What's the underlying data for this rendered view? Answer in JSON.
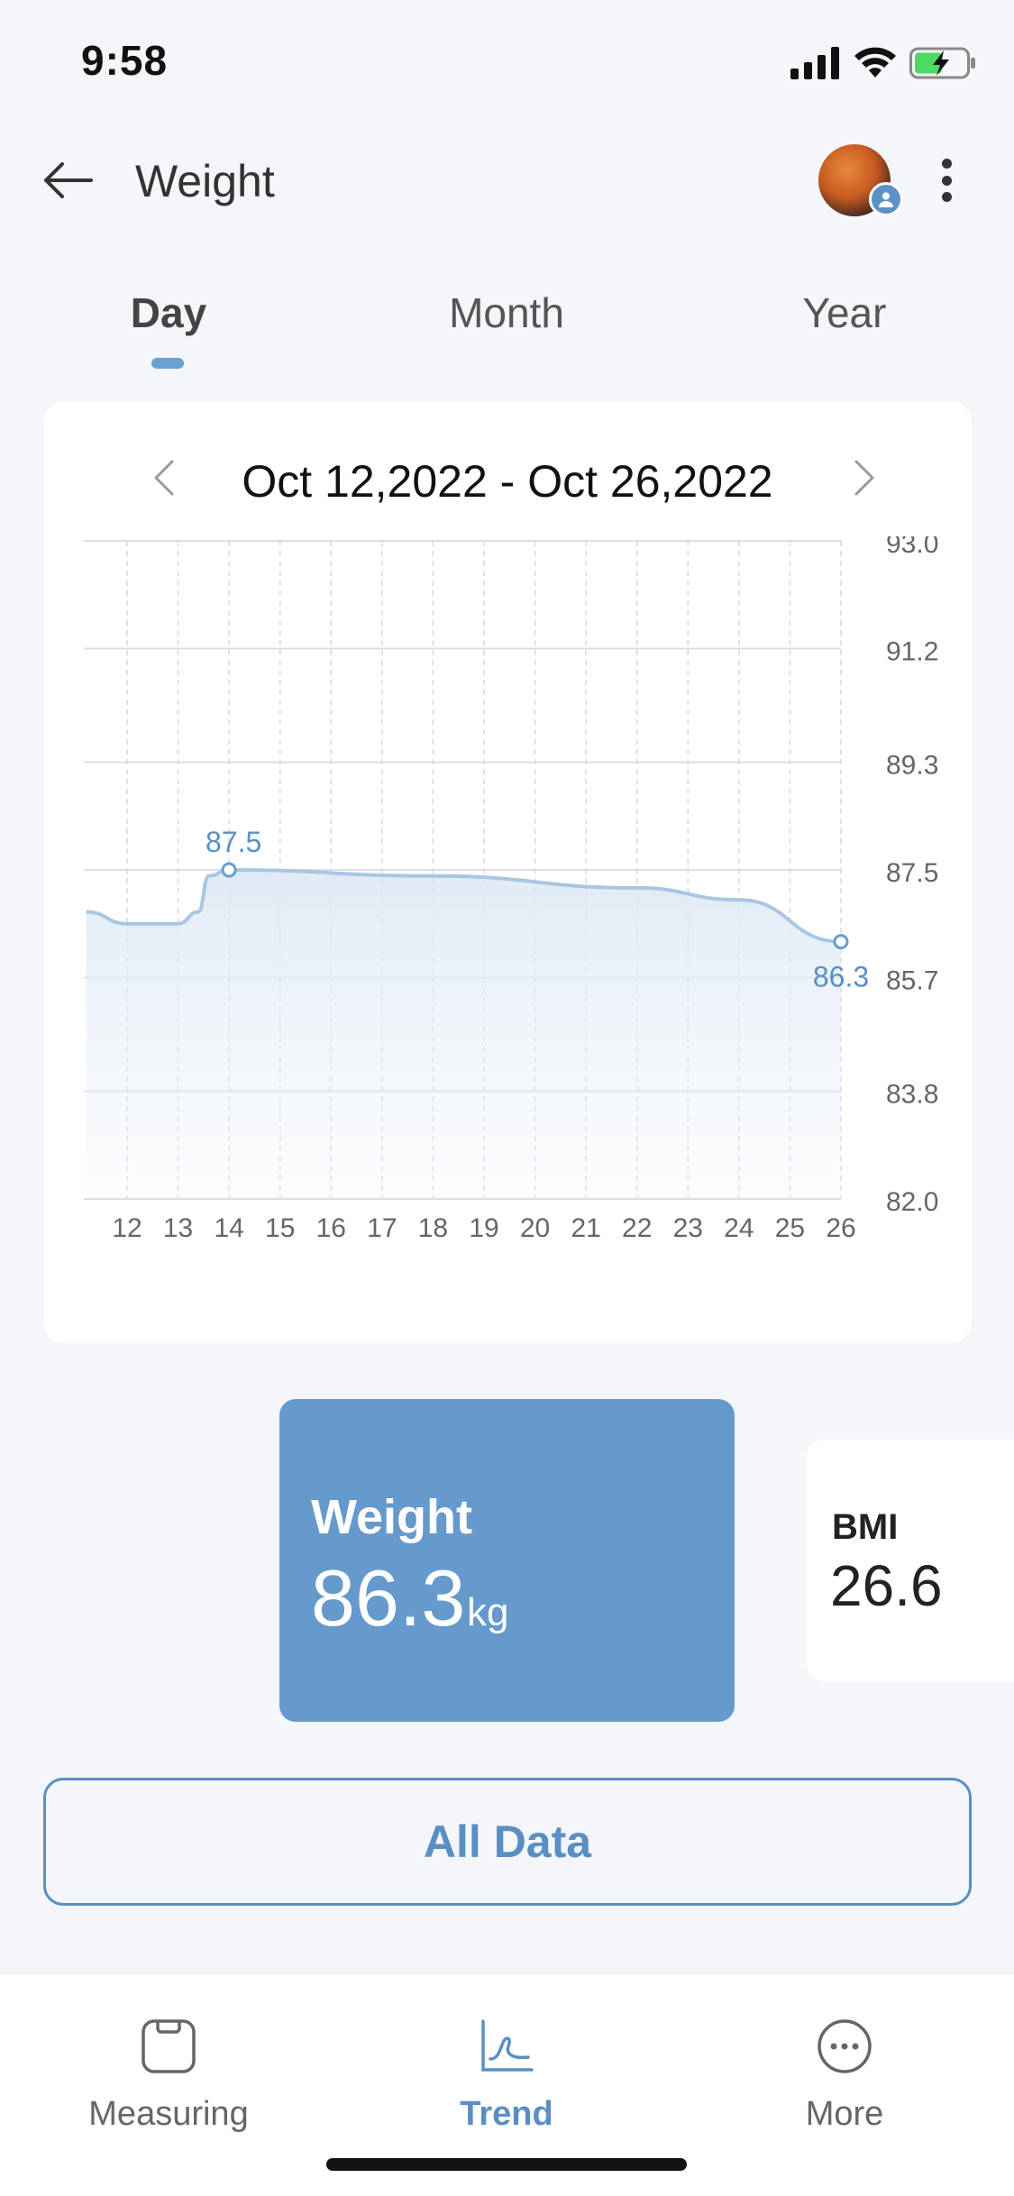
{
  "status_bar": {
    "time": "9:58"
  },
  "header": {
    "title": "Weight"
  },
  "tabs": [
    {
      "label": "Day",
      "active": true
    },
    {
      "label": "Month",
      "active": false
    },
    {
      "label": "Year",
      "active": false
    }
  ],
  "range": {
    "label": "Oct 12,2022 - Oct 26,2022"
  },
  "chart_data": {
    "type": "area",
    "x_ticks": [
      "12",
      "13",
      "14",
      "15",
      "16",
      "17",
      "18",
      "19",
      "20",
      "21",
      "22",
      "23",
      "24",
      "25",
      "26"
    ],
    "y_ticks": [
      "93.0",
      "91.2",
      "89.3",
      "87.5",
      "85.7",
      "83.8",
      "82.0"
    ],
    "ylim": [
      82.0,
      93.0
    ],
    "xlim": [
      11.2,
      26
    ],
    "series": [
      {
        "color": "#a9c6e2",
        "points": [
          {
            "x": 11.2,
            "y": 86.8
          },
          {
            "x": 12.0,
            "y": 86.6
          },
          {
            "x": 13.0,
            "y": 86.6
          },
          {
            "x": 13.4,
            "y": 86.8
          },
          {
            "x": 13.6,
            "y": 87.4
          },
          {
            "x": 14.0,
            "y": 87.5
          },
          {
            "x": 18.0,
            "y": 87.4
          },
          {
            "x": 22.0,
            "y": 87.2
          },
          {
            "x": 24.0,
            "y": 87.0
          },
          {
            "x": 26.0,
            "y": 86.3
          }
        ]
      }
    ],
    "annotations": [
      {
        "x": 14,
        "y": 87.5,
        "label": "87.5",
        "position": "above"
      },
      {
        "x": 26,
        "y": 86.3,
        "label": "86.3",
        "position": "below"
      }
    ],
    "grid": true
  },
  "metrics": {
    "weight": {
      "label": "Weight",
      "value": "86.3",
      "unit": "kg"
    },
    "bmi": {
      "label": "BMI",
      "value": "26.6"
    }
  },
  "all_data_label": "All Data",
  "tabbar": [
    {
      "label": "Measuring",
      "icon": "scale-icon",
      "active": false
    },
    {
      "label": "Trend",
      "icon": "trend-icon",
      "active": true
    },
    {
      "label": "More",
      "icon": "more-icon",
      "active": false
    }
  ],
  "colors": {
    "accent": "#6699cc",
    "line": "#a9c6e2"
  }
}
